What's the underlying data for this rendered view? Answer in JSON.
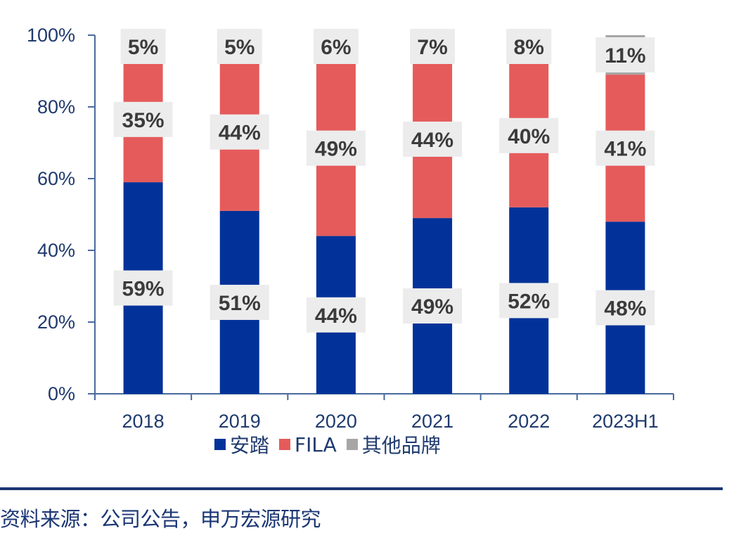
{
  "chart_data": {
    "type": "bar",
    "stacked": true,
    "title": "",
    "xlabel": "",
    "ylabel": "",
    "ylim": [
      0,
      100
    ],
    "y_ticks": [
      "0%",
      "20%",
      "40%",
      "60%",
      "80%",
      "100%"
    ],
    "y_tick_values": [
      0,
      20,
      40,
      60,
      80,
      100
    ],
    "categories": [
      "2018",
      "2019",
      "2020",
      "2021",
      "2022",
      "2023H1"
    ],
    "series": [
      {
        "name": "安踏",
        "color": "#023299",
        "values": [
          59,
          51,
          44,
          49,
          52,
          48
        ],
        "labels": [
          "59%",
          "51%",
          "44%",
          "49%",
          "52%",
          "48%"
        ]
      },
      {
        "name": "FILA",
        "color": "#e55b5b",
        "values": [
          35,
          44,
          49,
          44,
          40,
          41
        ],
        "labels": [
          "35%",
          "44%",
          "49%",
          "44%",
          "40%",
          "41%"
        ]
      },
      {
        "name": "其他品牌",
        "color": "#a6a6a6",
        "values": [
          5,
          5,
          6,
          7,
          8,
          11
        ],
        "labels": [
          "5%",
          "5%",
          "6%",
          "7%",
          "8%",
          "11%"
        ]
      }
    ],
    "legend_position": "bottom",
    "grid": false
  },
  "legend": [
    {
      "label": "安踏",
      "color": "#023299"
    },
    {
      "label": "FILA",
      "color": "#e55b5b"
    },
    {
      "label": "其他品牌",
      "color": "#a6a6a6"
    }
  ],
  "source_note": "资料来源：公司公告，申万宏源研究"
}
